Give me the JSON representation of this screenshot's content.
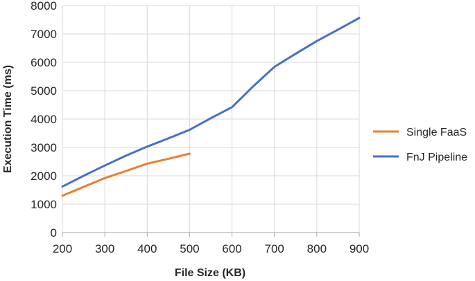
{
  "chart_data": {
    "type": "line",
    "xlabel": "File Size (KB)",
    "ylabel": "Execution Time (ms)",
    "xlim": [
      200,
      900
    ],
    "ylim": [
      0,
      8000
    ],
    "x_ticks": [
      200,
      300,
      400,
      500,
      600,
      700,
      800,
      900
    ],
    "y_ticks": [
      0,
      1000,
      2000,
      3000,
      4000,
      5000,
      6000,
      7000,
      8000
    ],
    "x_tick_labels": [
      "200",
      "300",
      "400",
      "500",
      "600",
      "700",
      "800",
      "900"
    ],
    "y_tick_labels": [
      "0",
      "1000",
      "2000",
      "3000",
      "4000",
      "5000",
      "6000",
      "7000",
      "8000"
    ],
    "grid": "horizontal",
    "legend_position": "right",
    "series": [
      {
        "name": "Single FaaS",
        "color": "#ED7D31",
        "x": [
          200,
          250,
          300,
          350,
          400,
          450,
          500
        ],
        "y": [
          1300,
          1610,
          1920,
          2170,
          2430,
          2600,
          2780
        ]
      },
      {
        "name": "FnJ Pipeline",
        "color": "#4472C4",
        "x": [
          200,
          250,
          300,
          350,
          400,
          450,
          500,
          550,
          600,
          650,
          700,
          750,
          800,
          850,
          900
        ],
        "y": [
          1620,
          2000,
          2360,
          2710,
          3030,
          3320,
          3620,
          4030,
          4420,
          5150,
          5840,
          6300,
          6750,
          7150,
          7560
        ]
      }
    ]
  }
}
